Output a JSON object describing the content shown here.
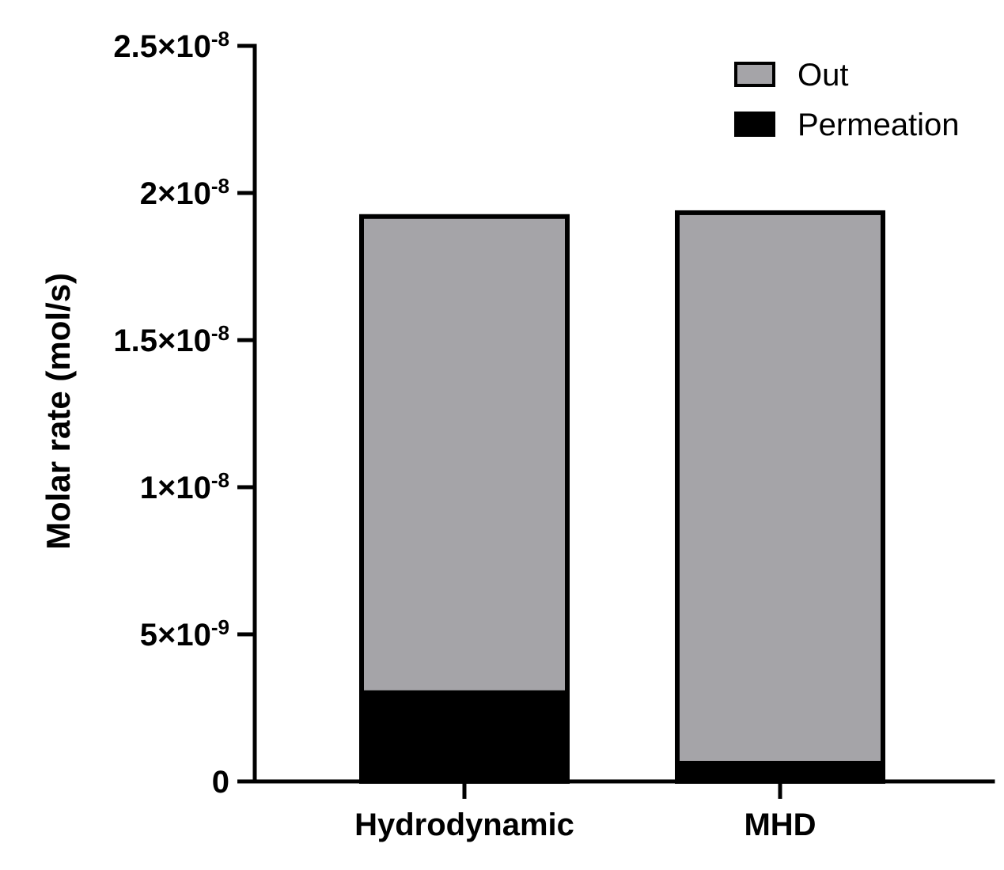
{
  "chart_data": {
    "type": "bar",
    "stacked": true,
    "title": "",
    "xlabel": "",
    "ylabel": "Molar rate (mol/s)",
    "categories": [
      "Hydrodynamic",
      "MHD"
    ],
    "series": [
      {
        "name": "Permeation",
        "values": [
          3.1e-09,
          7e-10
        ],
        "color": "#000000"
      },
      {
        "name": "Out",
        "values": [
          1.61e-08,
          1.863e-08
        ],
        "color": "#a5a4a8"
      }
    ],
    "ylim": [
      0,
      2.5e-08
    ],
    "yticks": [
      {
        "value": 0,
        "mantissa": "0",
        "exponent": ""
      },
      {
        "value": 5e-09,
        "mantissa": "5×10",
        "exponent": "-9"
      },
      {
        "value": 1e-08,
        "mantissa": "1×10",
        "exponent": "-8"
      },
      {
        "value": 1.5e-08,
        "mantissa": "1.5×10",
        "exponent": "-8"
      },
      {
        "value": 2e-08,
        "mantissa": "2×10",
        "exponent": "-8"
      },
      {
        "value": 2.5e-08,
        "mantissa": "2.5×10",
        "exponent": "-8"
      }
    ],
    "legend": {
      "position": "top-right",
      "entries": [
        {
          "label": "Out",
          "color": "#a5a4a8"
        },
        {
          "label": "Permeation",
          "color": "#000000"
        }
      ]
    },
    "grid": false
  }
}
